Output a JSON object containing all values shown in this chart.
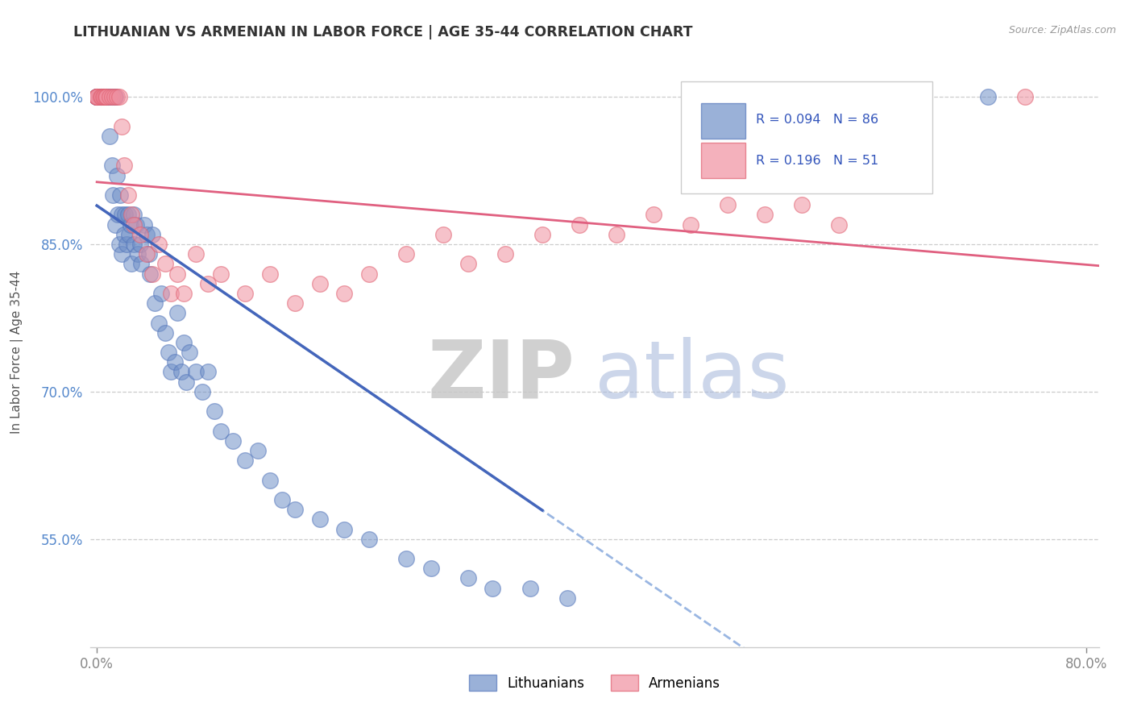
{
  "title": "LITHUANIAN VS ARMENIAN IN LABOR FORCE | AGE 35-44 CORRELATION CHART",
  "source": "Source: ZipAtlas.com",
  "ylabel": "In Labor Force | Age 35-44",
  "xlim": [
    -0.005,
    0.81
  ],
  "ylim": [
    0.44,
    1.04
  ],
  "y_ticks": [
    0.55,
    0.7,
    0.85,
    1.0
  ],
  "y_tick_labels": [
    "55.0%",
    "70.0%",
    "85.0%",
    "100.0%"
  ],
  "x_ticks": [
    0.0,
    0.8
  ],
  "x_tick_labels": [
    "0.0%",
    "80.0%"
  ],
  "blue_color": "#7090C8",
  "blue_edge": "#5577BB",
  "pink_color": "#F090A0",
  "pink_edge": "#E06070",
  "blue_trend_color": "#4466BB",
  "pink_trend_color": "#E06080",
  "blue_dashed_color": "#88AADD",
  "grid_color": "#CCCCCC",
  "watermark1": "ZIP",
  "watermark2": "atlas",
  "tick_label_color_y": "#5588CC",
  "tick_label_color_x": "#888888",
  "legend_r_blue": "R = 0.094",
  "legend_n_blue": "N = 86",
  "legend_r_pink": "R = 0.196",
  "legend_n_pink": "N = 51",
  "blue_N": 86,
  "pink_N": 51,
  "blue_R": 0.094,
  "pink_R": 0.196,
  "blue_x": [
    0.0,
    0.0,
    0.0,
    0.0,
    0.0,
    0.003,
    0.003,
    0.003,
    0.004,
    0.004,
    0.005,
    0.005,
    0.006,
    0.006,
    0.007,
    0.007,
    0.008,
    0.008,
    0.009,
    0.009,
    0.01,
    0.01,
    0.01,
    0.012,
    0.012,
    0.013,
    0.014,
    0.015,
    0.015,
    0.016,
    0.017,
    0.018,
    0.019,
    0.02,
    0.02,
    0.022,
    0.023,
    0.024,
    0.025,
    0.026,
    0.027,
    0.028,
    0.03,
    0.03,
    0.032,
    0.033,
    0.035,
    0.036,
    0.038,
    0.04,
    0.042,
    0.043,
    0.045,
    0.047,
    0.05,
    0.052,
    0.055,
    0.058,
    0.06,
    0.063,
    0.065,
    0.068,
    0.07,
    0.072,
    0.075,
    0.08,
    0.085,
    0.09,
    0.095,
    0.1,
    0.11,
    0.12,
    0.13,
    0.14,
    0.15,
    0.16,
    0.18,
    0.2,
    0.22,
    0.25,
    0.27,
    0.3,
    0.32,
    0.35,
    0.38,
    0.72
  ],
  "blue_y": [
    1.0,
    1.0,
    1.0,
    1.0,
    1.0,
    1.0,
    1.0,
    1.0,
    1.0,
    1.0,
    1.0,
    1.0,
    1.0,
    1.0,
    1.0,
    1.0,
    1.0,
    1.0,
    1.0,
    1.0,
    1.0,
    1.0,
    0.96,
    1.0,
    0.93,
    0.9,
    1.0,
    1.0,
    0.87,
    0.92,
    0.88,
    0.85,
    0.9,
    0.88,
    0.84,
    0.86,
    0.88,
    0.85,
    0.88,
    0.86,
    0.87,
    0.83,
    0.88,
    0.85,
    0.87,
    0.84,
    0.85,
    0.83,
    0.87,
    0.86,
    0.84,
    0.82,
    0.86,
    0.79,
    0.77,
    0.8,
    0.76,
    0.74,
    0.72,
    0.73,
    0.78,
    0.72,
    0.75,
    0.71,
    0.74,
    0.72,
    0.7,
    0.72,
    0.68,
    0.66,
    0.65,
    0.63,
    0.64,
    0.61,
    0.59,
    0.58,
    0.57,
    0.56,
    0.55,
    0.53,
    0.52,
    0.51,
    0.5,
    0.5,
    0.49,
    1.0
  ],
  "pink_x": [
    0.0,
    0.0,
    0.0,
    0.0,
    0.003,
    0.004,
    0.005,
    0.006,
    0.007,
    0.008,
    0.01,
    0.012,
    0.014,
    0.016,
    0.018,
    0.02,
    0.022,
    0.025,
    0.028,
    0.03,
    0.035,
    0.04,
    0.045,
    0.05,
    0.055,
    0.06,
    0.065,
    0.07,
    0.08,
    0.09,
    0.1,
    0.12,
    0.14,
    0.16,
    0.18,
    0.2,
    0.22,
    0.25,
    0.28,
    0.3,
    0.33,
    0.36,
    0.39,
    0.42,
    0.45,
    0.48,
    0.51,
    0.54,
    0.57,
    0.6,
    0.75
  ],
  "pink_y": [
    1.0,
    1.0,
    1.0,
    1.0,
    1.0,
    1.0,
    1.0,
    1.0,
    1.0,
    1.0,
    1.0,
    1.0,
    1.0,
    1.0,
    1.0,
    0.97,
    0.93,
    0.9,
    0.88,
    0.87,
    0.86,
    0.84,
    0.82,
    0.85,
    0.83,
    0.8,
    0.82,
    0.8,
    0.84,
    0.81,
    0.82,
    0.8,
    0.82,
    0.79,
    0.81,
    0.8,
    0.82,
    0.84,
    0.86,
    0.83,
    0.84,
    0.86,
    0.87,
    0.86,
    0.88,
    0.87,
    0.89,
    0.88,
    0.89,
    0.87,
    1.0
  ]
}
